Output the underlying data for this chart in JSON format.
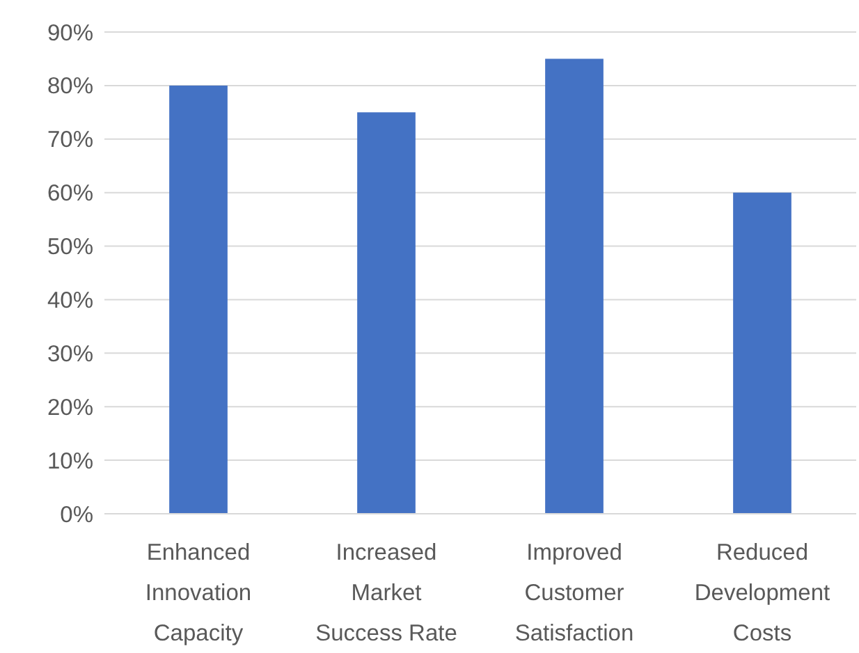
{
  "chart_data": {
    "type": "bar",
    "categories": [
      "Enhanced Innovation Capacity",
      "Increased Market Success Rate",
      "Improved Customer Satisfaction",
      "Reduced Development Costs"
    ],
    "values": [
      80,
      75,
      85,
      60
    ],
    "color": "#4472c4",
    "ylim": [
      0,
      90
    ],
    "yticks": [
      {
        "value": 0,
        "label": "0%"
      },
      {
        "value": 10,
        "label": "10%"
      },
      {
        "value": 20,
        "label": "20%"
      },
      {
        "value": 30,
        "label": "30%"
      },
      {
        "value": 40,
        "label": "40%"
      },
      {
        "value": 50,
        "label": "50%"
      },
      {
        "value": 60,
        "label": "60%"
      },
      {
        "value": 70,
        "label": "70%"
      },
      {
        "value": 80,
        "label": "80%"
      },
      {
        "value": 90,
        "label": "90%"
      }
    ],
    "grid": "y"
  }
}
